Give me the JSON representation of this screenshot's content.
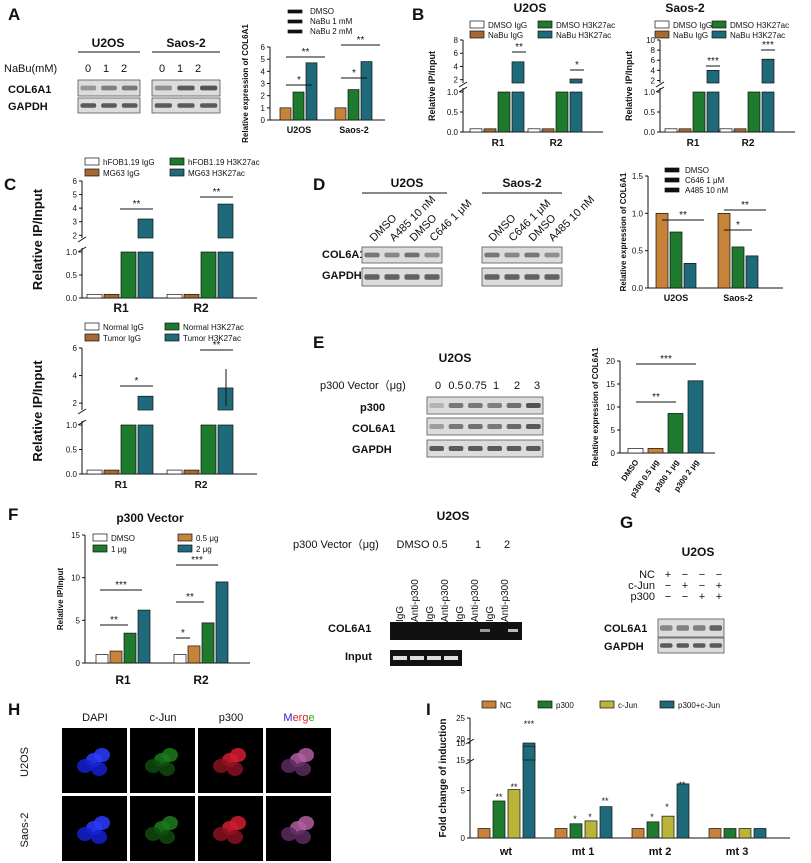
{
  "colors": {
    "dmso": "#c8833a",
    "nabu1": "#1e7b2d",
    "nabu2": "#1f6a7a",
    "igg1": "#ffffff",
    "igg2": "#a56a33",
    "ac1": "#1e7b2d",
    "ac2": "#1f6a7a",
    "c646": "#b9b53a",
    "ptumor": "#1f6a7a"
  },
  "panels": {
    "A": {
      "letter": "A",
      "cell1": "U2OS",
      "cell2": "Saos-2",
      "nabu_label": "NaBu(mM)",
      "doses": [
        "0",
        "1",
        "2",
        "0",
        "1",
        "2"
      ],
      "row1": "COL6A1",
      "row2": "GAPDH"
    },
    "B": {
      "letter": "B"
    },
    "C": {
      "letter": "C"
    },
    "D": {
      "letter": "D",
      "cell1": "U2OS",
      "cell2": "Saos-2",
      "lanes1": [
        "DMSO",
        "A485 10 nM",
        "DMSO",
        "C646 1 μM"
      ],
      "lanes2": [
        "DMSO",
        "C646 1 μM",
        "DMSO",
        "A485 10 nM"
      ],
      "row1": "COL6A1",
      "row2": "GAPDH"
    },
    "E": {
      "letter": "E",
      "cell": "U2OS",
      "vector_label": "p300 Vector（μg)",
      "doses": [
        "0",
        "0.5",
        "0.75",
        "1",
        "2",
        "3"
      ],
      "rows": [
        "p300",
        "COL6A1",
        "GAPDH"
      ]
    },
    "F": {
      "letter": "F",
      "gel_title": "U2OS",
      "gel_vector_label": "p300 Vector（μg)",
      "gel_doses": [
        "DMSO",
        "0.5",
        "1",
        "2"
      ],
      "gel_lanes": [
        "IgG",
        "Anti-p300",
        "IgG",
        "Anti-p300",
        "IgG",
        "Anti-p300",
        "IgG",
        "Anti-p300"
      ],
      "row1": "COL6A1",
      "row2": "Input"
    },
    "G": {
      "letter": "G",
      "cell": "U2OS",
      "conds": [
        "NC",
        "c-Jun",
        "p300"
      ],
      "signs": [
        [
          "+",
          "−",
          "−",
          "−"
        ],
        [
          "−",
          "+",
          "−",
          "+"
        ],
        [
          "−",
          "−",
          "+",
          "+"
        ]
      ],
      "rows": [
        "COL6A1",
        "GAPDH"
      ]
    },
    "H": {
      "letter": "H",
      "channels": [
        "DAPI",
        "c-Jun",
        "p300",
        "Merge"
      ],
      "cells": [
        "U2OS",
        "Saos-2"
      ]
    },
    "I": {
      "letter": "I"
    }
  },
  "chart_data": [
    {
      "id": "A",
      "type": "bar",
      "title": "",
      "ylabel": "Relative expression of COL6A1",
      "categories": [
        "U2OS",
        "Saos-2"
      ],
      "legend": [
        "DMSO",
        "NaBu 1 mM",
        "NaBu 2 mM"
      ],
      "series": [
        {
          "name": "DMSO",
          "values": [
            1,
            1
          ]
        },
        {
          "name": "NaBu 1 mM",
          "values": [
            2.3,
            2.5
          ]
        },
        {
          "name": "NaBu 2 mM",
          "values": [
            4.7,
            4.8
          ]
        }
      ],
      "ylim": [
        0,
        6
      ],
      "yticks": [
        "0",
        "1",
        "2",
        "3",
        "4",
        "5",
        "6"
      ],
      "sig": [
        "*",
        "**",
        "*",
        "**"
      ]
    },
    {
      "id": "B1",
      "type": "bar",
      "title": "U2OS",
      "ylabel": "Relative IP/Input",
      "categories": [
        "R1",
        "R2"
      ],
      "legend": [
        "DMSO IgG",
        "NaBu IgG",
        "DMSO H3K27ac",
        "NaBu H3K27ac"
      ],
      "series": [
        {
          "name": "DMSO IgG",
          "values": [
            0.08,
            0.08
          ]
        },
        {
          "name": "NaBu IgG",
          "values": [
            0.08,
            0.08
          ]
        },
        {
          "name": "DMSO H3K27ac",
          "values": [
            1,
            1
          ]
        },
        {
          "name": "NaBu H3K27ac",
          "values": [
            4.7,
            2.1
          ]
        }
      ],
      "yticks_low": [
        "0.0",
        "0.5",
        "1.0"
      ],
      "yticks_high": [
        "2",
        "4",
        "6",
        "8"
      ],
      "sig": [
        "**",
        "*"
      ]
    },
    {
      "id": "B2",
      "type": "bar",
      "title": "Saos-2",
      "ylabel": "Relative IP/Input",
      "categories": [
        "R1",
        "R2"
      ],
      "legend": [
        "DMSO IgG",
        "NaBu IgG",
        "DMSO H3K27ac",
        "NaBu H3K27ac"
      ],
      "series": [
        {
          "name": "DMSO IgG",
          "values": [
            0.08,
            0.08
          ]
        },
        {
          "name": "NaBu IgG",
          "values": [
            0.08,
            0.08
          ]
        },
        {
          "name": "DMSO H3K27ac",
          "values": [
            1,
            1
          ]
        },
        {
          "name": "NaBu H3K27ac",
          "values": [
            4,
            6.2
          ]
        }
      ],
      "yticks_low": [
        "0.0",
        "0.5",
        "1.0"
      ],
      "yticks_high": [
        "2",
        "4",
        "6",
        "8",
        "10"
      ],
      "sig": [
        "***",
        "***"
      ]
    },
    {
      "id": "C1",
      "type": "bar",
      "ylabel": "Relative IP/Input",
      "categories": [
        "R1",
        "R2"
      ],
      "legend": [
        "hFOB1.19 IgG",
        "MG63 IgG",
        "hFOB1.19 H3K27ac",
        "MG63 H3K27ac"
      ],
      "series": [
        {
          "name": "hFOB1.19 IgG",
          "values": [
            0.08,
            0.08
          ]
        },
        {
          "name": "MG63 IgG",
          "values": [
            0.08,
            0.08
          ]
        },
        {
          "name": "hFOB1.19 H3K27ac",
          "values": [
            1,
            1
          ]
        },
        {
          "name": "MG63 H3K27ac",
          "values": [
            3.2,
            4.3
          ]
        }
      ],
      "yticks_low": [
        "0.0",
        "0.5",
        "1.0"
      ],
      "yticks_high": [
        "2",
        "3",
        "4",
        "5",
        "6"
      ],
      "sig": [
        "**",
        "**"
      ]
    },
    {
      "id": "C2",
      "type": "bar",
      "ylabel": "Relative IP/Input",
      "categories": [
        "R1",
        "R2"
      ],
      "legend": [
        "Normal IgG",
        "Tumor IgG",
        "Normal H3K27ac",
        "Tumor H3K27ac"
      ],
      "series": [
        {
          "name": "Normal IgG",
          "values": [
            0.08,
            0.08
          ]
        },
        {
          "name": "Tumor IgG",
          "values": [
            0.08,
            0.08
          ]
        },
        {
          "name": "Normal H3K27ac",
          "values": [
            1,
            1
          ]
        },
        {
          "name": "Tumor H3K27ac",
          "values": [
            2.5,
            3.1
          ]
        }
      ],
      "yticks_low": [
        "0.0",
        "0.5",
        "1.0"
      ],
      "yticks_high": [
        "2",
        "4",
        "6"
      ],
      "sig": [
        "*",
        "**"
      ]
    },
    {
      "id": "D",
      "type": "bar",
      "ylabel": "Relative expression of COL6A1",
      "categories": [
        "U2OS",
        "Saos-2"
      ],
      "legend": [
        "DMSO",
        "C646 1 μM",
        "A485 10 nM"
      ],
      "series": [
        {
          "name": "DMSO",
          "values": [
            1,
            1
          ]
        },
        {
          "name": "C646 1 μM",
          "values": [
            0.75,
            0.55
          ]
        },
        {
          "name": "A485 10 nM",
          "values": [
            0.33,
            0.43
          ]
        }
      ],
      "ylim": [
        0,
        1.5
      ],
      "yticks": [
        "0.0",
        "0.5",
        "1.0",
        "1.5"
      ],
      "sig": [
        "**",
        "*",
        "**"
      ]
    },
    {
      "id": "E",
      "type": "bar",
      "ylabel": "Relative expression of COL6A1",
      "categories": [
        "DMSO",
        "p300 0.5 μg",
        "p300 1 μg",
        "p300 2 μg"
      ],
      "values": [
        1,
        1,
        8.6,
        15.7
      ],
      "ylim": [
        0,
        20
      ],
      "yticks": [
        "0",
        "5",
        "10",
        "15",
        "20"
      ],
      "sig": [
        "**",
        "***"
      ]
    },
    {
      "id": "F",
      "type": "bar",
      "title": "p300 Vector",
      "ylabel": "Relative IP/Input",
      "categories": [
        "R1",
        "R2"
      ],
      "legend": [
        "DMSO",
        "1 μg",
        "0.5 μg",
        "2 μg"
      ],
      "series": [
        {
          "name": "DMSO",
          "values": [
            1,
            1
          ]
        },
        {
          "name": "0.5 μg",
          "values": [
            1.4,
            2
          ]
        },
        {
          "name": "1 μg",
          "values": [
            3.5,
            4.7
          ]
        },
        {
          "name": "2 μg",
          "values": [
            6.2,
            9.5
          ]
        }
      ],
      "ylim": [
        0,
        15
      ],
      "yticks": [
        "0",
        "5",
        "10",
        "15"
      ],
      "sig": [
        "**",
        "***",
        "*",
        "**",
        "***"
      ]
    },
    {
      "id": "I",
      "type": "bar",
      "ylabel": "Fold change of induction",
      "categories": [
        "wt",
        "mt 1",
        "mt 2",
        "mt 3"
      ],
      "legend": [
        "NC",
        "p300",
        "c-Jun",
        "p300+c-Jun"
      ],
      "series": [
        {
          "name": "NC",
          "values": [
            1,
            1,
            1,
            1
          ]
        },
        {
          "name": "p300",
          "values": [
            3.9,
            1.5,
            1.7,
            1
          ]
        },
        {
          "name": "c-Jun",
          "values": [
            5.1,
            1.8,
            2.3,
            1
          ]
        },
        {
          "name": "p300+c-Jun",
          "values": [
            18.3,
            3.3,
            5.7,
            1
          ]
        }
      ],
      "yticks_low": [
        "0",
        "5",
        "10"
      ],
      "yticks_high": [
        "15",
        "20",
        "25"
      ],
      "sig": [
        "**",
        "**",
        "***",
        "*",
        "*",
        "**",
        "*",
        "*",
        "**"
      ]
    }
  ]
}
